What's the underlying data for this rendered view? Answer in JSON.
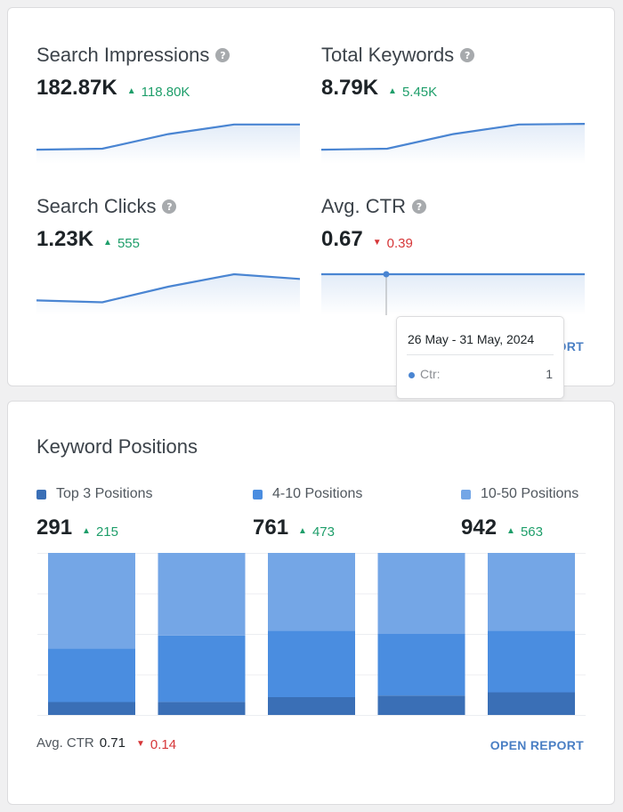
{
  "search_console": {
    "metrics": [
      {
        "title": "Search Impressions",
        "value": "182.87K",
        "delta": "118.80K",
        "trend": "up",
        "spark": [
          0.14,
          0.17,
          0.64,
          0.95,
          0.95
        ]
      },
      {
        "title": "Total Keywords",
        "value": "8.79K",
        "delta": "5.45K",
        "trend": "up",
        "spark": [
          0.14,
          0.17,
          0.64,
          0.95,
          0.97
        ]
      },
      {
        "title": "Search Clicks",
        "value": "1.23K",
        "delta": "555",
        "trend": "up",
        "spark": [
          0.16,
          0.1,
          0.6,
          1.0,
          0.85
        ]
      },
      {
        "title": "Avg. CTR",
        "value": "0.67",
        "delta": "0.39",
        "trend": "down",
        "spark": [
          1,
          1,
          1,
          1,
          1
        ]
      }
    ],
    "open_report": "OPEN REPORT",
    "tooltip": {
      "title": "26 May - 31 May, 2024",
      "label": "Ctr:",
      "value": "1"
    }
  },
  "keyword_positions": {
    "title": "Keyword Positions",
    "legend": [
      {
        "label": "Top 3 Positions",
        "value": "291",
        "delta": "215",
        "color": "#3a6fb6"
      },
      {
        "label": "4-10 Positions",
        "value": "761",
        "delta": "473",
        "color": "#4a8de0"
      },
      {
        "label": "10-50 Positions",
        "value": "942",
        "delta": "563",
        "color": "#74a6e6"
      }
    ],
    "avg_ctr_label": "Avg. CTR",
    "avg_ctr_value": "0.71",
    "avg_ctr_delta": "0.14",
    "open_report": "OPEN REPORT"
  },
  "chart_data": {
    "type": "bar",
    "stacked": true,
    "categories": [
      "",
      "",
      "",
      "",
      ""
    ],
    "series": [
      {
        "name": "Top 3 Positions",
        "values": [
          8,
          8,
          11,
          12,
          14
        ],
        "color": "#3a6fb6"
      },
      {
        "name": "4-10 Positions",
        "values": [
          33,
          41,
          41,
          38,
          38
        ],
        "color": "#4a8de0"
      },
      {
        "name": "10-50 Positions",
        "values": [
          59,
          51,
          48,
          50,
          48
        ],
        "color": "#74a6e6"
      }
    ],
    "ylim": [
      0,
      100
    ],
    "grid": true
  }
}
